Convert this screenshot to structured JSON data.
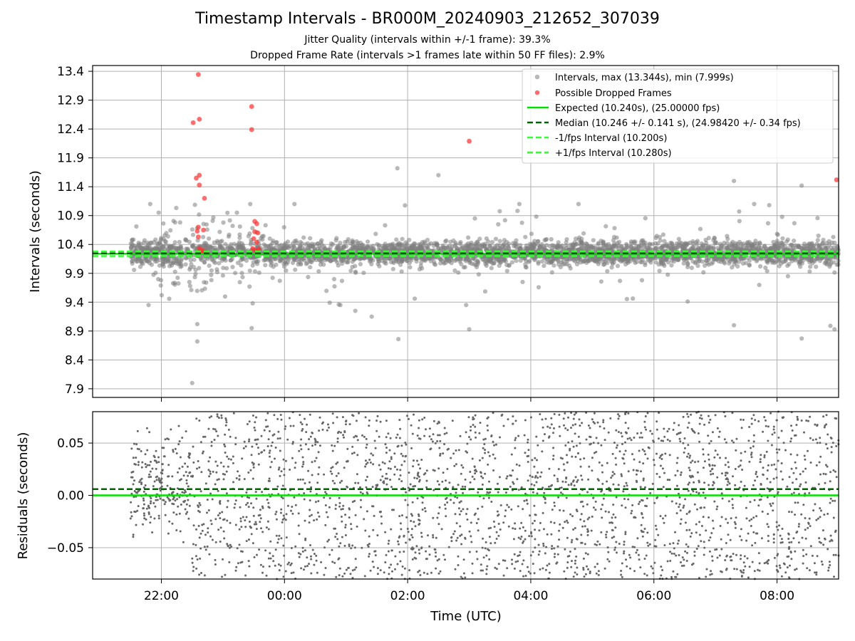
{
  "title": "Timestamp Intervals - BR000M_20240903_212652_307039",
  "subtitle_jitter": "Jitter Quality (intervals within +/-1 frame): 39.3%",
  "subtitle_dropped": "Dropped Frame Rate (intervals >1 frames late within 50 FF files): 2.9%",
  "colors": {
    "intervals": "#808080",
    "dropped": "#ff3030",
    "expected": "#00e000",
    "median": "#006400",
    "fps_interval": "#30ff30",
    "grid": "#b0b0b0"
  },
  "chart_data": [
    {
      "type": "scatter",
      "panel": "intervals",
      "ylabel": "Intervals (seconds)",
      "xlim": [
        "20:53",
        "09:00"
      ],
      "ylim": [
        7.75,
        13.5
      ],
      "y_ticks": [
        "7.9",
        "8.4",
        "8.9",
        "9.4",
        "9.9",
        "10.4",
        "10.9",
        "11.4",
        "11.9",
        "12.4",
        "12.9",
        "13.4"
      ],
      "grid": true,
      "legend_position": "top-right",
      "legend": [
        "Intervals, max (13.344s), min (7.999s)",
        "Possible Dropped Frames",
        "Expected (10.240s), (25.00000 fps)",
        "Median (10.246 +/- 0.141 s), (24.98420 +/- 0.34 fps)",
        "-1/fps Interval (10.200s)",
        "+1/fps Interval (10.280s)"
      ],
      "series": [
        {
          "name": "Intervals, max (13.344s), min (7.999s)",
          "kind": "points",
          "count": 3600,
          "time_range": [
            "21:30",
            "09:00"
          ],
          "median": 10.246,
          "std": 0.141,
          "max": 13.344,
          "min": 7.999,
          "notable_points": [
            {
              "x": "22:30",
              "y": 7.999
            },
            {
              "x": "22:35",
              "y": 8.72
            },
            {
              "x": "22:35",
              "y": 9.02
            },
            {
              "x": "23:28",
              "y": 8.95
            },
            {
              "x": "01:09",
              "y": 9.25
            },
            {
              "x": "01:25",
              "y": 9.15
            },
            {
              "x": "01:51",
              "y": 8.76
            },
            {
              "x": "01:50",
              "y": 11.72
            },
            {
              "x": "02:30",
              "y": 11.6
            },
            {
              "x": "03:00",
              "y": 8.93
            },
            {
              "x": "07:18",
              "y": 9.0
            },
            {
              "x": "07:18",
              "y": 11.5
            },
            {
              "x": "08:24",
              "y": 11.42
            },
            {
              "x": "08:24",
              "y": 8.77
            },
            {
              "x": "08:56",
              "y": 8.93
            },
            {
              "x": "08:52",
              "y": 8.99
            }
          ]
        },
        {
          "name": "Possible Dropped Frames",
          "kind": "points",
          "points": [
            {
              "x": "22:36",
              "y": 13.344
            },
            {
              "x": "22:31",
              "y": 12.51
            },
            {
              "x": "22:37",
              "y": 12.57
            },
            {
              "x": "22:34",
              "y": 11.55
            },
            {
              "x": "22:37",
              "y": 11.6
            },
            {
              "x": "22:37",
              "y": 11.43
            },
            {
              "x": "22:42",
              "y": 11.2
            },
            {
              "x": "22:36",
              "y": 10.7
            },
            {
              "x": "22:35",
              "y": 10.63
            },
            {
              "x": "22:41",
              "y": 10.65
            },
            {
              "x": "22:36",
              "y": 10.53
            },
            {
              "x": "22:37",
              "y": 10.33
            },
            {
              "x": "22:38",
              "y": 10.28
            },
            {
              "x": "22:40",
              "y": 10.3
            },
            {
              "x": "22:42",
              "y": 10.27
            },
            {
              "x": "22:44",
              "y": 10.25
            },
            {
              "x": "23:28",
              "y": 12.79
            },
            {
              "x": "23:28",
              "y": 12.39
            },
            {
              "x": "23:31",
              "y": 10.8
            },
            {
              "x": "23:33",
              "y": 10.76
            },
            {
              "x": "23:31",
              "y": 10.62
            },
            {
              "x": "23:34",
              "y": 10.6
            },
            {
              "x": "23:30",
              "y": 10.5
            },
            {
              "x": "23:33",
              "y": 10.44
            },
            {
              "x": "23:29",
              "y": 10.33
            },
            {
              "x": "23:31",
              "y": 10.3
            },
            {
              "x": "23:33",
              "y": 10.28
            },
            {
              "x": "23:35",
              "y": 10.32
            },
            {
              "x": "03:00",
              "y": 12.19
            },
            {
              "x": "08:58",
              "y": 11.52
            }
          ]
        },
        {
          "name": "Expected (10.240s), (25.00000 fps)",
          "kind": "hline",
          "y": 10.24
        },
        {
          "name": "Median (10.246 +/- 0.141 s), (24.98420 +/- 0.34 fps)",
          "kind": "hline",
          "y": 10.246
        },
        {
          "name": "-1/fps Interval (10.200s)",
          "kind": "hline",
          "y": 10.2
        },
        {
          "name": "+1/fps Interval (10.280s)",
          "kind": "hline",
          "y": 10.28
        }
      ]
    },
    {
      "type": "scatter",
      "panel": "residuals",
      "xlabel": "Time (UTC)",
      "ylabel": "Residuals (seconds)",
      "xlim": [
        "20:53",
        "09:00"
      ],
      "ylim": [
        -0.08,
        0.08
      ],
      "x_ticks": [
        "22:00",
        "00:00",
        "02:00",
        "04:00",
        "06:00",
        "08:00"
      ],
      "y_ticks": [
        "−0.05",
        "0.00",
        "0.05"
      ],
      "grid": true,
      "series": [
        {
          "kind": "points",
          "count": 2600,
          "time_range": [
            "21:30",
            "09:00"
          ],
          "spread": [
            -0.08,
            0.08
          ]
        },
        {
          "kind": "hline",
          "role": "expected",
          "y": 0.0
        },
        {
          "kind": "hline",
          "role": "median",
          "y": 0.006
        }
      ]
    }
  ]
}
